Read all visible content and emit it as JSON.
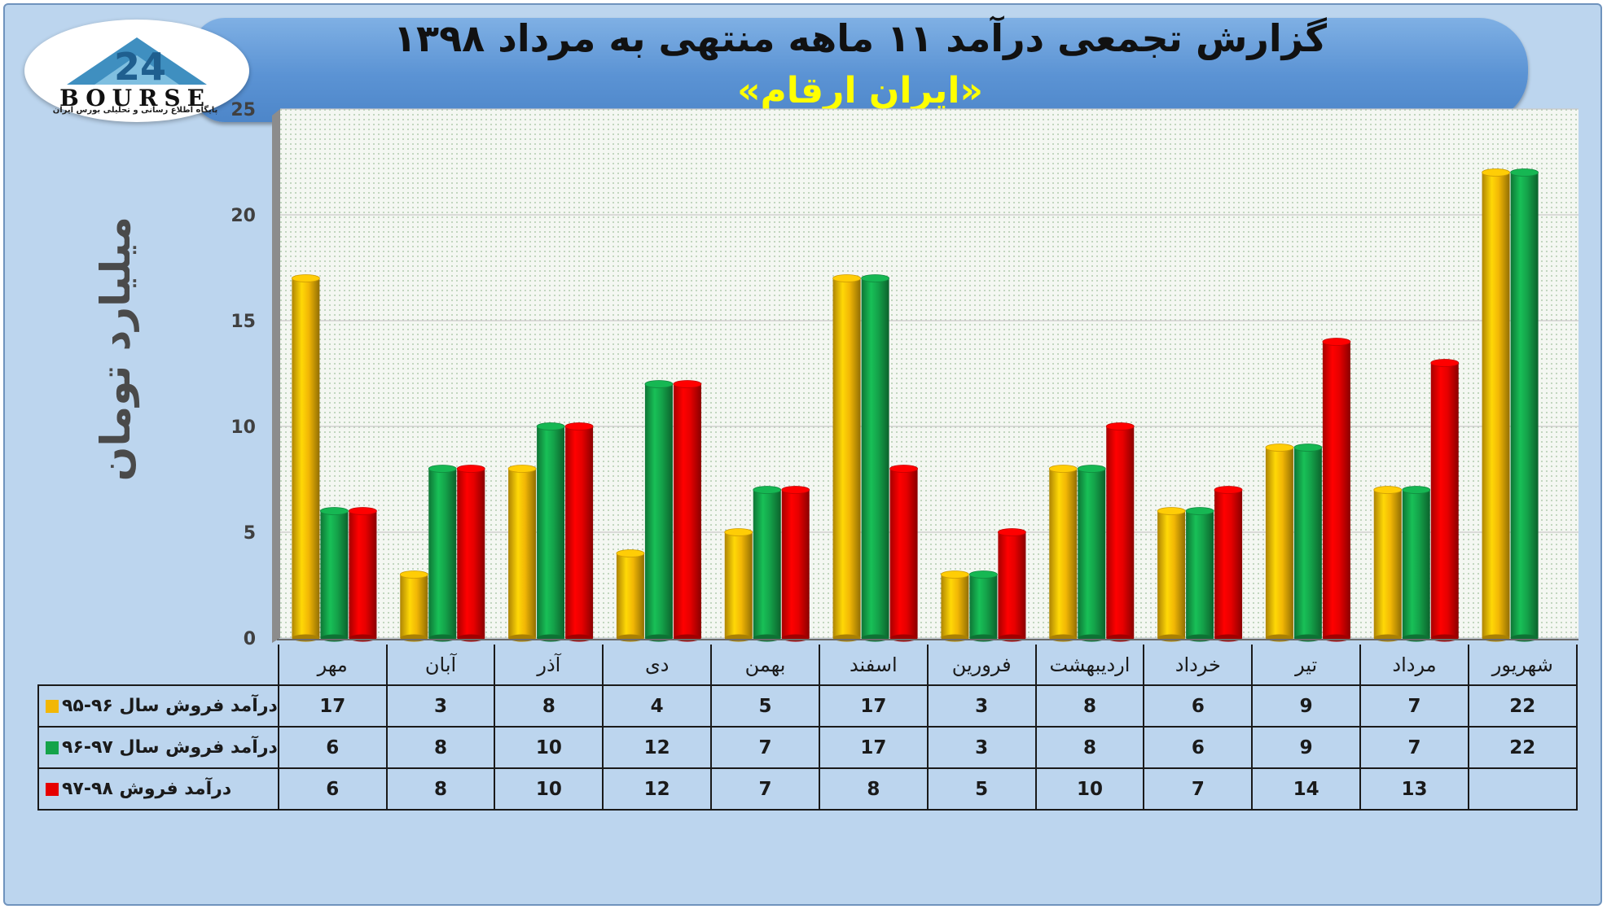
{
  "header": {
    "title": "گزارش تجمعی درآمد ۱۱ ماهه منتهی به مرداد ۱۳۹۸",
    "subtitle": "«ایران ارقام»"
  },
  "logo": {
    "word": "BOURSE",
    "tagline": "پایگاه اطلاع رسانی و تحلیلی بورس ایران"
  },
  "colors": {
    "series_1": "#f2b705",
    "series_2": "#14a34a",
    "series_3": "#e60000",
    "background": "#bcd5ee",
    "banner": "#5b93d4"
  },
  "chart_data": {
    "type": "bar",
    "ylabel": "میلیارد تومان",
    "ylim": [
      0,
      25
    ],
    "yticks": [
      0,
      5,
      10,
      15,
      20,
      25
    ],
    "grid": true,
    "categories": [
      "مهر",
      "آبان",
      "آذر",
      "دی",
      "بهمن",
      "اسفند",
      "فرورین",
      "اردیبهشت",
      "خرداد",
      "تیر",
      "مرداد",
      "شهریور"
    ],
    "series": [
      {
        "name": "درآمد فروش سال ۹۶-۹۵",
        "color": "#f2b705",
        "values": [
          17,
          3,
          8,
          4,
          5,
          17,
          3,
          8,
          6,
          9,
          7,
          22
        ]
      },
      {
        "name": "درآمد فروش سال ۹۷-۹۶",
        "color": "#14a34a",
        "values": [
          6,
          8,
          10,
          12,
          7,
          17,
          3,
          8,
          6,
          9,
          7,
          22
        ]
      },
      {
        "name": "درآمد فروش ۹۸-۹۷",
        "color": "#e60000",
        "values": [
          6,
          8,
          10,
          12,
          7,
          8,
          5,
          10,
          7,
          14,
          13,
          null
        ]
      }
    ]
  }
}
